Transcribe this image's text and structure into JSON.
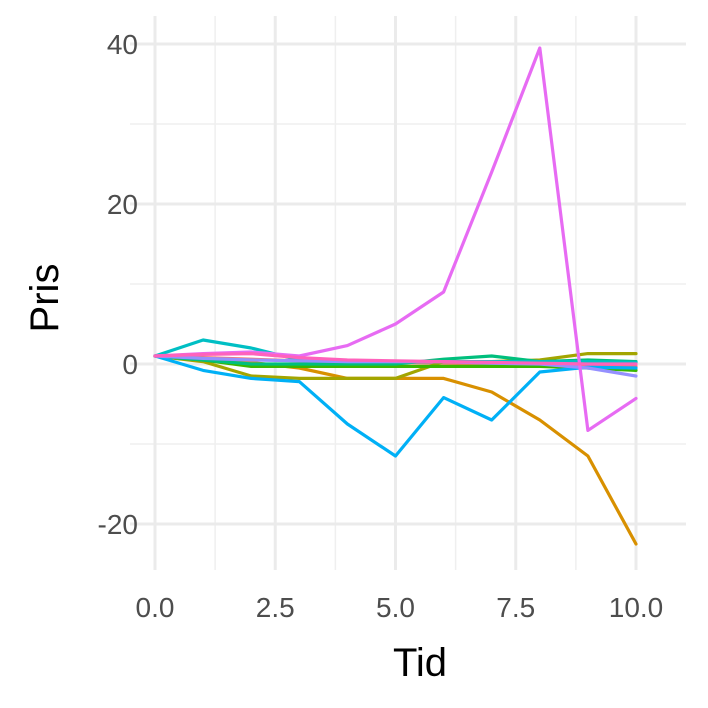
{
  "chart_data": {
    "type": "line",
    "title": "",
    "xlabel": "Tid",
    "ylabel": "Pris",
    "xlim": [
      0,
      10
    ],
    "ylim": [
      -22.5,
      40
    ],
    "grid": true,
    "x": [
      0,
      1,
      2,
      3,
      4,
      5,
      6,
      7,
      8,
      9,
      10
    ],
    "x_ticks": [
      0,
      2.5,
      5,
      7.5,
      10
    ],
    "x_tick_labels": [
      "0.0",
      "2.5",
      "5.0",
      "7.5",
      "10.0"
    ],
    "y_ticks": [
      -20,
      0,
      20,
      40
    ],
    "y_tick_labels": [
      "-20",
      "0",
      "20",
      "40"
    ],
    "series": [
      {
        "color": "#F8766D",
        "values": [
          1,
          0.8,
          0.6,
          0.4,
          0.3,
          0.2,
          0.1,
          0.0,
          -0.1,
          -0.2,
          -0.3
        ]
      },
      {
        "color": "#D89000",
        "values": [
          1,
          0.5,
          0.2,
          -0.5,
          -1.8,
          -1.8,
          -1.8,
          -3.5,
          -7,
          -11.5,
          -22.5
        ]
      },
      {
        "color": "#A3A500",
        "values": [
          1,
          0.3,
          -1.5,
          -1.8,
          -1.8,
          -1.8,
          0.3,
          0.3,
          0.5,
          1.3,
          1.3
        ]
      },
      {
        "color": "#39B600",
        "values": [
          1,
          0.5,
          -0.3,
          -0.3,
          -0.3,
          -0.3,
          -0.3,
          -0.3,
          -0.3,
          -0.5,
          -0.8
        ]
      },
      {
        "color": "#00BF7D",
        "values": [
          1,
          0.5,
          0,
          0,
          0,
          0,
          0.6,
          1,
          0.3,
          0.5,
          0.3
        ]
      },
      {
        "color": "#00BFC4",
        "values": [
          1,
          3,
          2,
          0.5,
          0.3,
          0.3,
          0.3,
          0.3,
          0.3,
          0.3,
          0.2
        ]
      },
      {
        "color": "#00B0F6",
        "values": [
          1,
          -0.8,
          -1.8,
          -2.2,
          -7.5,
          -11.5,
          -4.2,
          -7,
          -1,
          -0.4,
          -0.5
        ]
      },
      {
        "color": "#9590FF",
        "values": [
          1,
          0.7,
          0.5,
          0.4,
          0.3,
          0.3,
          0.3,
          0.1,
          0,
          -0.5,
          -1.5
        ]
      },
      {
        "color": "#E76BF3",
        "values": [
          1,
          1.3,
          1.5,
          1,
          2.3,
          5,
          9,
          24,
          39.5,
          -8.3,
          -4.3
        ]
      },
      {
        "color": "#FF62BC",
        "values": [
          1,
          1.2,
          1.3,
          0.8,
          0.5,
          0.4,
          0.3,
          0.2,
          0.1,
          0,
          0
        ]
      }
    ]
  }
}
